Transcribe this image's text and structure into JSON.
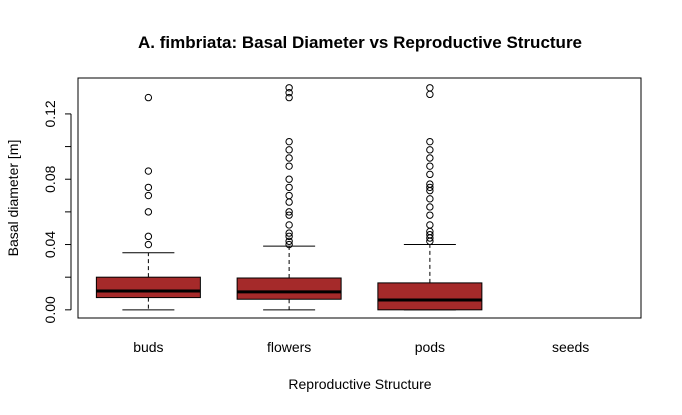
{
  "chart_data": {
    "type": "box",
    "title": "A. fimbriata: Basal Diameter vs Reproductive Structure",
    "xlabel": "Reproductive Structure",
    "ylabel": "Basal diameter [m]",
    "ylim": [
      -0.005,
      0.142
    ],
    "y_ticks": [
      "0.00",
      "0.04",
      "0.08",
      "0.12"
    ],
    "y_tick_values": [
      0.0,
      0.04,
      0.08,
      0.12
    ],
    "categories": [
      "buds",
      "flowers",
      "pods",
      "seeds"
    ],
    "box_color": "#A52A2A",
    "boxes": [
      {
        "category": "buds",
        "min": 0.0,
        "q1": 0.0075,
        "median": 0.0115,
        "q3": 0.02,
        "max": 0.035,
        "outliers": [
          0.04,
          0.045,
          0.06,
          0.07,
          0.075,
          0.085,
          0.13
        ]
      },
      {
        "category": "flowers",
        "min": 0.0,
        "q1": 0.0065,
        "median": 0.011,
        "q3": 0.0195,
        "max": 0.039,
        "outliers": [
          0.04,
          0.042,
          0.045,
          0.047,
          0.052,
          0.058,
          0.06,
          0.066,
          0.07,
          0.075,
          0.08,
          0.088,
          0.093,
          0.098,
          0.103,
          0.13,
          0.133,
          0.136
        ]
      },
      {
        "category": "pods",
        "min": 0.0,
        "q1": 0.0,
        "median": 0.006,
        "q3": 0.0165,
        "max": 0.04,
        "outliers": [
          0.042,
          0.044,
          0.046,
          0.048,
          0.052,
          0.058,
          0.063,
          0.068,
          0.073,
          0.075,
          0.077,
          0.083,
          0.088,
          0.093,
          0.098,
          0.103,
          0.132,
          0.136
        ]
      },
      {
        "category": "seeds",
        "min": null,
        "q1": null,
        "median": null,
        "q3": null,
        "max": null,
        "outliers": []
      }
    ]
  }
}
